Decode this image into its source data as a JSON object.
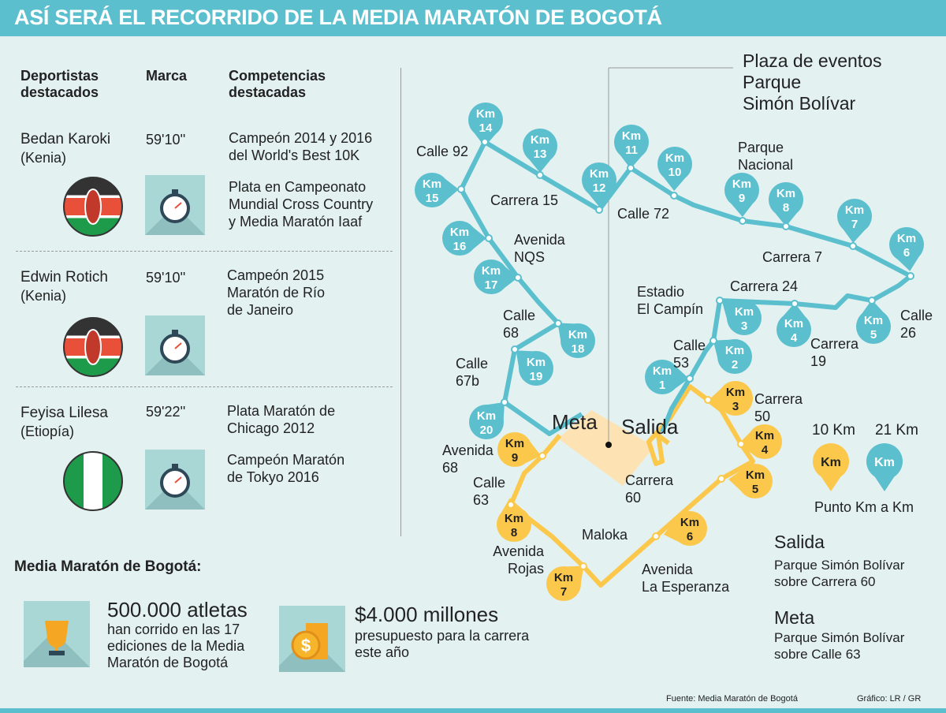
{
  "title": "ASÍ SERÁ EL RECORRIDO DE LA MEDIA MARATÓN DE BOGOTÁ",
  "colors": {
    "teal": "#5bbfce",
    "yellow": "#fbc84b",
    "park": "#fde3b4",
    "background": "#e3f1f1"
  },
  "table": {
    "headers": {
      "athletes": [
        "Deportistas",
        "destacados"
      ],
      "mark": "Marca",
      "competitions": [
        "Competencias",
        "destacadas"
      ]
    },
    "rows": [
      {
        "name": "Bedan Karoki",
        "country": "(Kenia)",
        "mark": "59'10''",
        "flag": "kenya-flag",
        "icon": "stopwatch-icon",
        "competitions": [
          "Campeón 2014 y 2016",
          "del World's Best 10K"
        ],
        "competitions2": [
          "Plata en Campeonato",
          "Mundial Cross Country",
          "y Media Maratón Iaaf"
        ]
      },
      {
        "name": "Edwin Rotich",
        "country": "(Kenia)",
        "mark": "59'10''",
        "flag": "kenya-flag",
        "icon": "stopwatch-icon",
        "competitions": [
          "Campeón 2015",
          "Maratón de Río",
          "de Janeiro"
        ]
      },
      {
        "name": "Feyisa Lilesa",
        "country": "(Etiopía)",
        "mark": "59'22''",
        "flag": "nigeria-like-flag",
        "icon": "stopwatch-icon",
        "competitions": [
          "Plata Maratón de",
          "Chicago 2012"
        ],
        "competitions2": [
          "Campeón Maratón",
          "de Tokyo 2016"
        ]
      }
    ]
  },
  "stats": {
    "heading": "Media Maratón de Bogotá:",
    "items": [
      {
        "icon": "trophy-icon",
        "value": "500.000 atletas",
        "desc": [
          "han corrido en las 17",
          "ediciones de la Media",
          "Maratón de Bogotá"
        ]
      },
      {
        "icon": "coins-icon",
        "value": "$4.000 millones",
        "desc": [
          "presupuesto para la carrera",
          "este año"
        ]
      }
    ]
  },
  "map": {
    "plaza": [
      "Plaza de eventos",
      "Parque",
      "Simón Bolívar"
    ],
    "meta": "Meta",
    "salida": "Salida",
    "km_prefix": "Km",
    "route21_markers": [
      "1",
      "2",
      "3",
      "4",
      "5",
      "6",
      "7",
      "8",
      "9",
      "10",
      "11",
      "12",
      "13",
      "14",
      "15",
      "16",
      "17",
      "18",
      "19",
      "20"
    ],
    "route10_markers": [
      "3",
      "4",
      "5",
      "6",
      "7",
      "8",
      "9"
    ],
    "streets": {
      "calle92": "Calle 92",
      "carrera15": "Carrera 15",
      "calle72": "Calle 72",
      "parque_nacional": [
        "Parque",
        "Nacional"
      ],
      "avenida_nqs": [
        "Avenida",
        "NQS"
      ],
      "carrera7": "Carrera 7",
      "estadio": [
        "Estadio",
        "El Campín"
      ],
      "carrera24": "Carrera 24",
      "calle26": [
        "Calle",
        "26"
      ],
      "carrera19": [
        "Carrera",
        "19"
      ],
      "calle53": [
        "Calle",
        "53"
      ],
      "calle68": [
        "Calle",
        "68"
      ],
      "calle67b": [
        "Calle",
        "67b"
      ],
      "carrera50": [
        "Carrera",
        "50"
      ],
      "avenida68": [
        "Avenida",
        "68"
      ],
      "calle63": [
        "Calle",
        "63"
      ],
      "carrera60": [
        "Carrera",
        "60"
      ],
      "maloka": "Maloka",
      "avenida_rojas": [
        "Avenida",
        "Rojas"
      ],
      "avenida_esperanza": [
        "Avenida",
        "La Esperanza"
      ]
    }
  },
  "legend": {
    "ten": "10 Km",
    "twentyone": "21 Km",
    "pin_label": "Km",
    "caption": "Punto Km a Km"
  },
  "salida_info": {
    "title": "Salida",
    "lines": [
      "Parque Simón Bolívar",
      "sobre Carrera 60"
    ]
  },
  "meta_info": {
    "title": "Meta",
    "lines": [
      "Parque Simón Bolívar",
      "sobre Calle 63"
    ]
  },
  "footer": {
    "source": "Fuente: Media Maratón de Bogotá",
    "credit": "Gráfico: LR / GR"
  }
}
